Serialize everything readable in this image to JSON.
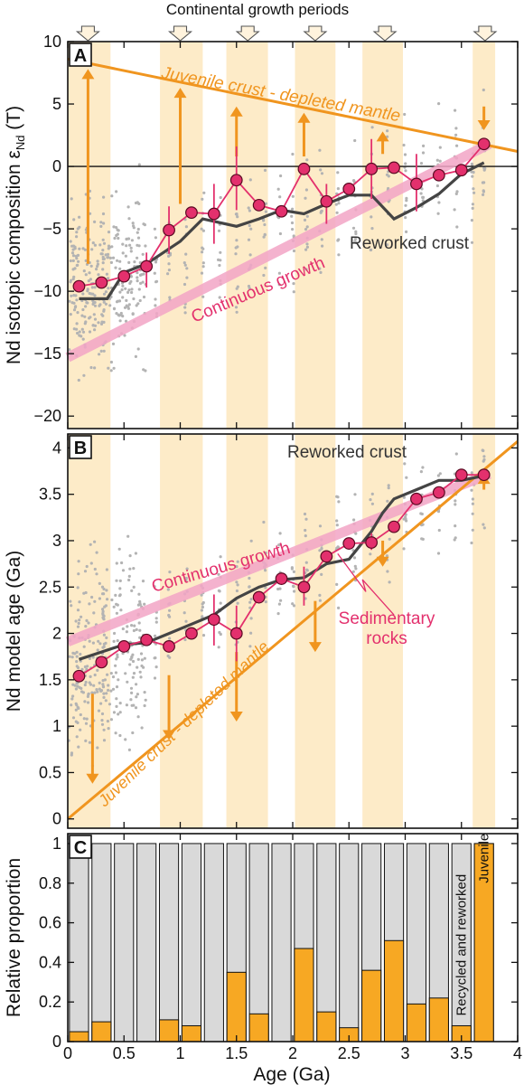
{
  "figure": {
    "top_label": "Continental growth periods",
    "x_axis_label": "Age (Ga)"
  },
  "colors": {
    "band": "#fdebc8",
    "orange": "#f0951f",
    "magenta": "#e3306d",
    "pink_band": "#f3a5c6",
    "gray_points": "#b3b3b3",
    "reworked_line": "#444444",
    "bar_gray": "#d9d9d9",
    "bar_orange": "#f7a823"
  },
  "chart_data": [
    {
      "panel": "A",
      "type": "line",
      "ylabel": "Nd isotopic composition εNd (T)",
      "xlim": [
        0,
        4
      ],
      "ylim": [
        -21,
        10
      ],
      "x_ticks": [
        0,
        0.5,
        1,
        1.5,
        2,
        2.5,
        3,
        3.5,
        4
      ],
      "y_ticks": [
        10,
        5,
        0,
        -5,
        -10,
        -15,
        -20
      ],
      "growth_periods": [
        [
          0.0,
          0.38
        ],
        [
          0.82,
          1.2
        ],
        [
          1.41,
          1.78
        ],
        [
          2.02,
          2.38
        ],
        [
          2.62,
          2.98
        ],
        [
          3.6,
          3.8
        ]
      ],
      "growth_arrows_x": [
        0.18,
        1.0,
        1.6,
        2.2,
        2.82,
        3.71
      ],
      "annotations": [
        "Juvenile crust - depleted mantle",
        "Continuous growth",
        "Reworked crust"
      ],
      "depleted_mantle": {
        "x": [
          0,
          4
        ],
        "y": [
          8.6,
          1.2
        ]
      },
      "continuous_growth": {
        "x": [
          0,
          3.75
        ],
        "y": [
          -15.3,
          1.8
        ]
      },
      "reworked_crust": {
        "x": [
          0.1,
          0.35,
          0.5,
          0.7,
          1.0,
          1.2,
          1.5,
          1.7,
          1.9,
          2.1,
          2.3,
          2.5,
          2.7,
          2.9,
          3.1,
          3.3,
          3.5,
          3.7
        ],
        "y": [
          -10.6,
          -10.6,
          -8.5,
          -7.8,
          -6.0,
          -4.2,
          -4.8,
          -4.2,
          -3.5,
          -3.8,
          -3.0,
          -2.3,
          -2.3,
          -4.2,
          -3.3,
          -2.2,
          -0.6,
          0.3
        ]
      },
      "sedimentary": {
        "x": [
          0.1,
          0.3,
          0.5,
          0.7,
          0.9,
          1.1,
          1.3,
          1.5,
          1.7,
          1.9,
          2.1,
          2.3,
          2.5,
          2.7,
          2.9,
          3.1,
          3.3,
          3.5,
          3.7
        ],
        "y": [
          -9.6,
          -9.3,
          -8.8,
          -8.0,
          -5.1,
          -3.7,
          -3.8,
          -1.1,
          -3.1,
          -3.6,
          -0.2,
          -2.8,
          -1.8,
          -0.2,
          -0.1,
          -1.4,
          -0.7,
          -0.3,
          1.8
        ]
      },
      "error_bars": [
        {
          "x": 0.7,
          "lo": -9.7,
          "hi": -6.9
        },
        {
          "x": 0.9,
          "lo": -7.0,
          "hi": -3.2
        },
        {
          "x": 1.3,
          "lo": -6.2,
          "hi": -1.4
        },
        {
          "x": 1.5,
          "lo": -3.5,
          "hi": 1.6
        },
        {
          "x": 2.3,
          "lo": -4.6,
          "hi": -1.4
        },
        {
          "x": 2.7,
          "lo": -2.6,
          "hi": 2.2
        },
        {
          "x": 3.1,
          "lo": -3.6,
          "hi": 1.0
        }
      ],
      "arrows_up": [
        {
          "x": 0.18,
          "y0": -7.8,
          "y1": 7.8
        },
        {
          "x": 1.0,
          "y0": -3.0,
          "y1": 6.3
        },
        {
          "x": 1.5,
          "y0": 0.8,
          "y1": 4.8
        },
        {
          "x": 2.1,
          "y0": 0.8,
          "y1": 4.3
        },
        {
          "x": 2.8,
          "y0": 1.0,
          "y1": 2.8
        }
      ],
      "arrows_down": [
        {
          "x": 3.7,
          "y0": 4.8,
          "y1": 2.9
        }
      ]
    },
    {
      "panel": "B",
      "type": "line",
      "ylabel": "Nd model age (Ga)",
      "xlim": [
        0,
        4
      ],
      "ylim": [
        -0.1,
        4.15
      ],
      "y_ticks": [
        0,
        0.5,
        1,
        1.5,
        2,
        2.5,
        3,
        3.5,
        4
      ],
      "annotations": [
        "Reworked crust",
        "Continuous growth",
        "Juvenile crust - depleted mantle",
        "Sedimentary rocks"
      ],
      "depleted_mantle": {
        "x": [
          0,
          4
        ],
        "y": [
          0,
          4.07
        ]
      },
      "continuous_growth": {
        "x": [
          0,
          3.75
        ],
        "y": [
          1.91,
          3.72
        ]
      },
      "reworked_crust": {
        "x": [
          0.1,
          0.3,
          0.5,
          0.7,
          0.9,
          1.1,
          1.3,
          1.5,
          1.7,
          1.9,
          2.1,
          2.3,
          2.5,
          2.7,
          2.8,
          2.9,
          3.1,
          3.3,
          3.5,
          3.7
        ],
        "y": [
          1.72,
          1.8,
          1.88,
          1.9,
          2.0,
          2.1,
          2.2,
          2.38,
          2.5,
          2.58,
          2.6,
          2.75,
          2.8,
          3.1,
          3.3,
          3.45,
          3.55,
          3.65,
          3.65,
          3.7
        ]
      },
      "sedimentary": {
        "x": [
          0.1,
          0.3,
          0.5,
          0.7,
          0.9,
          1.1,
          1.3,
          1.5,
          1.7,
          1.9,
          2.1,
          2.3,
          2.5,
          2.7,
          2.9,
          3.1,
          3.3,
          3.5,
          3.7
        ],
        "y": [
          1.54,
          1.69,
          1.86,
          1.93,
          1.86,
          2.0,
          2.15,
          2.0,
          2.39,
          2.59,
          2.5,
          2.83,
          2.97,
          2.98,
          3.15,
          3.45,
          3.52,
          3.71,
          3.71
        ]
      },
      "error_bars": [
        {
          "x": 1.3,
          "lo": 1.87,
          "hi": 2.42
        },
        {
          "x": 1.5,
          "lo": 1.7,
          "hi": 2.3
        },
        {
          "x": 2.1,
          "lo": 2.3,
          "hi": 2.72
        },
        {
          "x": 2.7,
          "lo": 2.9,
          "hi": 3.08
        }
      ],
      "arrows_down": [
        {
          "x": 0.22,
          "y0": 1.35,
          "y1": 0.38
        },
        {
          "x": 0.9,
          "y0": 1.55,
          "y1": 0.85
        },
        {
          "x": 1.5,
          "y0": 1.8,
          "y1": 1.05
        },
        {
          "x": 2.2,
          "y0": 2.35,
          "y1": 1.8
        },
        {
          "x": 2.8,
          "y0": 3.0,
          "y1": 2.72
        }
      ],
      "arrows_up": [
        {
          "x": 3.7,
          "y0": 3.55,
          "y1": 3.72
        }
      ]
    },
    {
      "panel": "C",
      "type": "bar",
      "ylabel": "Relative proportion",
      "xlim": [
        0,
        4
      ],
      "ylim": [
        0,
        1.05
      ],
      "y_ticks": [
        0,
        0.2,
        0.4,
        0.6,
        0.8,
        1
      ],
      "x": [
        0.1,
        0.3,
        0.5,
        0.7,
        0.9,
        1.1,
        1.3,
        1.5,
        1.7,
        1.9,
        2.1,
        2.3,
        2.5,
        2.7,
        2.9,
        3.1,
        3.3,
        3.5,
        3.7
      ],
      "juvenile": [
        0.05,
        0.1,
        0.0,
        0.0,
        0.11,
        0.08,
        0.0,
        0.35,
        0.14,
        0.0,
        0.47,
        0.15,
        0.07,
        0.36,
        0.51,
        0.19,
        0.22,
        0.08,
        1.0
      ],
      "series": [
        {
          "name": "Recycled and reworked"
        },
        {
          "name": "Juvenile"
        }
      ]
    }
  ]
}
